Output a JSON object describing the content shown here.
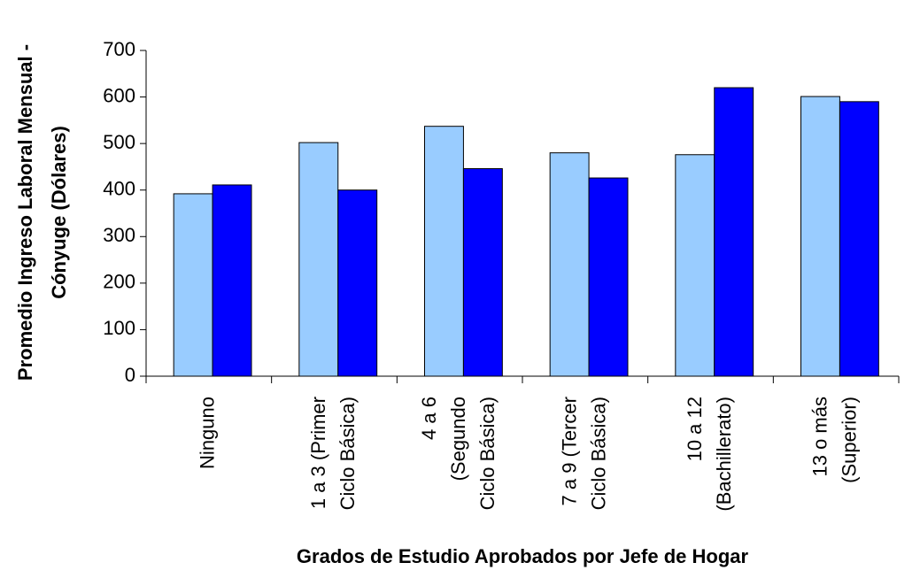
{
  "chart_data": {
    "type": "bar",
    "x_label": "Grados de Estudio Aprobados por Jefe de Hogar",
    "y_label": "Promedio Ingreso Laboral Mensual -\nCónyuge  (Dólares)",
    "categories": [
      "Ninguno",
      "1 a 3 (Primer\nCiclo Básica)",
      "4 a 6\n(Segundo\nCiclo Básica)",
      "7 a 9 (Tercer\nCiclo Básica)",
      "10 a 12\n(Bachillerato)",
      "13 o más\n(Superior)"
    ],
    "series": [
      {
        "color": "#99ccff",
        "values": [
          392,
          502,
          537,
          480,
          476,
          601
        ]
      },
      {
        "color": "#0000ff",
        "values": [
          411,
          400,
          446,
          426,
          620,
          590
        ]
      }
    ],
    "ylim": [
      0,
      700
    ],
    "yticks": [
      0,
      100,
      200,
      300,
      400,
      500,
      600,
      700
    ],
    "grid": false
  }
}
